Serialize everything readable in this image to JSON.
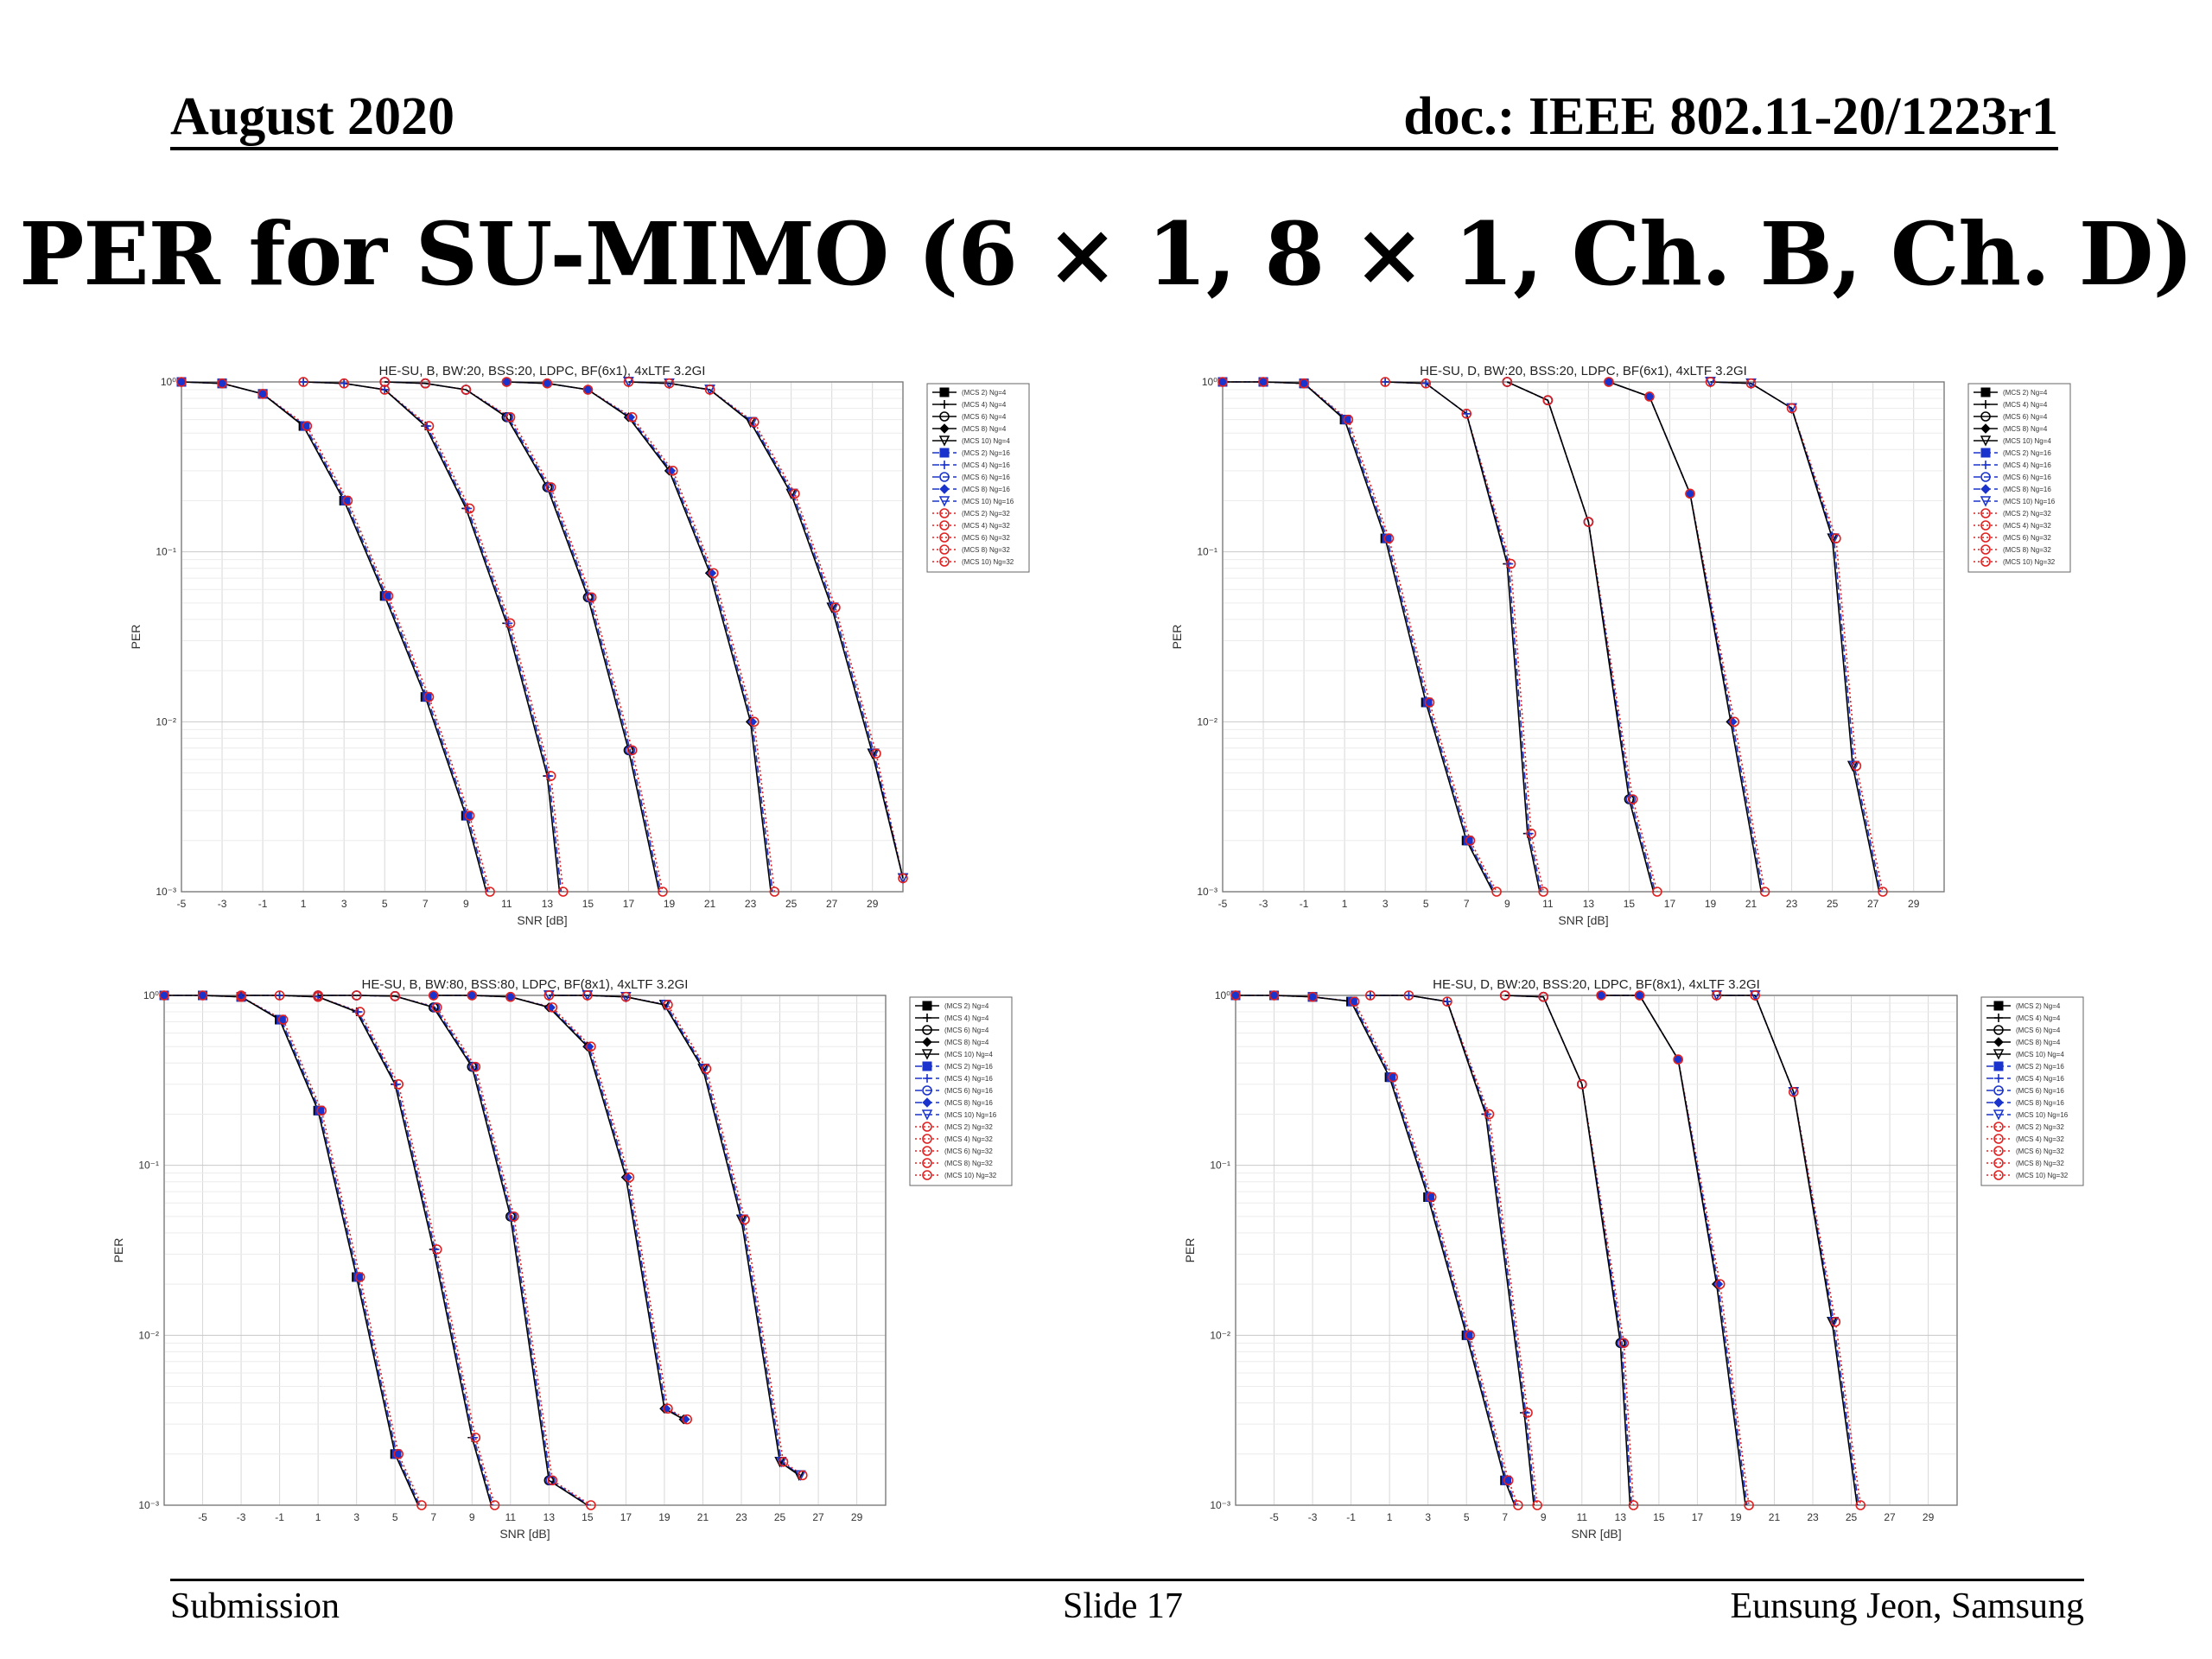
{
  "header": {
    "date": "August 2020",
    "doc": "doc.: IEEE 802.11-20/1223r1"
  },
  "title": "PER for SU-MIMO (6 × 1, 8 × 1, Ch. B, Ch. D)",
  "footer": {
    "left": "Submission",
    "center": "Slide 17",
    "right": "Eunsung Jeon, Samsung"
  },
  "colors": {
    "ng4": "#000000",
    "ng16": "#1a33cc",
    "ng32": "#e02020",
    "grid": "#d8d8d8"
  },
  "chart_data": [
    {
      "type": "line",
      "title": "HE-SU, B, BW:20, BSS:20, LDPC, BF(6x1), 4xLTF 3.2GI",
      "xlabel": "SNR [dB]",
      "ylabel": "PER",
      "log_y": true,
      "xlim": [
        -5,
        30.5
      ],
      "ylim": [
        0.001,
        1
      ],
      "xticks": [
        -5,
        -3,
        -1,
        1,
        3,
        5,
        7,
        9,
        11,
        13,
        15,
        17,
        19,
        21,
        23,
        25,
        27,
        29
      ],
      "ytick_labels": [
        "10⁰",
        "10⁻¹",
        "10⁻²",
        "10⁻³"
      ],
      "grid": true,
      "legend_position": "outside-right",
      "legend": [
        "(MCS 2) Ng=4",
        "(MCS 4) Ng=4",
        "(MCS 6) Ng=4",
        "(MCS 8) Ng=4",
        "(MCS 10) Ng=4",
        "(MCS 2) Ng=16",
        "(MCS 4) Ng=16",
        "(MCS 6) Ng=16",
        "(MCS 8) Ng=16",
        "(MCS 10) Ng=16",
        "(MCS 2) Ng=32",
        "(MCS 4) Ng=32",
        "(MCS 6) Ng=32",
        "(MCS 8) Ng=32",
        "(MCS 10) Ng=32"
      ],
      "curves": [
        {
          "mcs": 2,
          "x": [
            -5,
            -3,
            -1,
            1,
            3,
            5,
            7,
            9,
            10
          ],
          "y": [
            1,
            0.98,
            0.85,
            0.55,
            0.2,
            0.055,
            0.014,
            0.0028,
            0.001
          ]
        },
        {
          "mcs": 4,
          "x": [
            1,
            3,
            5,
            7,
            9,
            11,
            13,
            13.6
          ],
          "y": [
            1,
            0.98,
            0.9,
            0.55,
            0.18,
            0.038,
            0.0048,
            0.001
          ]
        },
        {
          "mcs": 6,
          "x": [
            5,
            7,
            9,
            11,
            13,
            15,
            17,
            18.5
          ],
          "y": [
            1,
            0.98,
            0.9,
            0.62,
            0.24,
            0.054,
            0.0068,
            0.001
          ]
        },
        {
          "mcs": 8,
          "x": [
            11,
            13,
            15,
            17,
            19,
            21,
            23,
            24
          ],
          "y": [
            1,
            0.98,
            0.9,
            0.62,
            0.3,
            0.075,
            0.01,
            0.001
          ]
        },
        {
          "mcs": 10,
          "x": [
            17,
            19,
            21,
            23,
            25,
            27,
            29,
            30.5
          ],
          "y": [
            1,
            0.98,
            0.9,
            0.58,
            0.22,
            0.047,
            0.0065,
            0.0012
          ]
        }
      ]
    },
    {
      "type": "line",
      "title": "HE-SU, D, BW:20, BSS:20, LDPC, BF(6x1), 4xLTF 3.2GI",
      "xlabel": "SNR [dB]",
      "ylabel": "PER",
      "log_y": true,
      "xlim": [
        -5,
        30.5
      ],
      "ylim": [
        0.001,
        1
      ],
      "xticks": [
        -5,
        -3,
        -1,
        1,
        3,
        5,
        7,
        9,
        11,
        13,
        15,
        17,
        19,
        21,
        23,
        25,
        27,
        29
      ],
      "ytick_labels": [
        "10⁰",
        "10⁻¹",
        "10⁻²",
        "10⁻³"
      ],
      "grid": true,
      "legend_position": "outside-right",
      "legend": [
        "(MCS 2) Ng=4",
        "(MCS 4) Ng=4",
        "(MCS 6) Ng=4",
        "(MCS 8) Ng=4",
        "(MCS 10) Ng=4",
        "(MCS 2) Ng=16",
        "(MCS 4) Ng=16",
        "(MCS 6) Ng=16",
        "(MCS 8) Ng=16",
        "(MCS 10) Ng=16",
        "(MCS 2) Ng=32",
        "(MCS 4) Ng=32",
        "(MCS 6) Ng=32",
        "(MCS 8) Ng=32",
        "(MCS 10) Ng=32"
      ],
      "curves": [
        {
          "mcs": 2,
          "x": [
            -5,
            -3,
            -1,
            1,
            3,
            5,
            7,
            8.3
          ],
          "y": [
            1,
            1,
            0.98,
            0.6,
            0.12,
            0.013,
            0.002,
            0.001
          ]
        },
        {
          "mcs": 4,
          "x": [
            3,
            5,
            7,
            9,
            10,
            10.6
          ],
          "y": [
            1,
            0.98,
            0.65,
            0.085,
            0.0022,
            0.001
          ]
        },
        {
          "mcs": 6,
          "x": [
            9,
            11,
            13,
            15,
            16.2
          ],
          "y": [
            1,
            0.78,
            0.15,
            0.0035,
            0.001
          ]
        },
        {
          "mcs": 8,
          "x": [
            14,
            16,
            18,
            20,
            21.5
          ],
          "y": [
            1,
            0.82,
            0.22,
            0.01,
            0.001
          ]
        },
        {
          "mcs": 10,
          "x": [
            19,
            21,
            23,
            25,
            26,
            27.3
          ],
          "y": [
            1,
            0.98,
            0.7,
            0.12,
            0.0055,
            0.001
          ]
        }
      ]
    },
    {
      "type": "line",
      "title": "HE-SU, B, BW:80, BSS:80, LDPC, BF(8x1), 4xLTF 3.2GI",
      "xlabel": "SNR [dB]",
      "ylabel": "PER",
      "log_y": true,
      "xlim": [
        -7,
        30.5
      ],
      "ylim": [
        0.001,
        1
      ],
      "xticks": [
        -5,
        -3,
        -1,
        1,
        3,
        5,
        7,
        9,
        11,
        13,
        15,
        17,
        19,
        21,
        23,
        25,
        27,
        29
      ],
      "ytick_labels": [
        "10⁰",
        "10⁻¹",
        "10⁻²",
        "10⁻³"
      ],
      "grid": true,
      "legend_position": "outside-right",
      "legend": [
        "(MCS 2) Ng=4",
        "(MCS 4) Ng=4",
        "(MCS 6) Ng=4",
        "(MCS 8) Ng=4",
        "(MCS 10) Ng=4",
        "(MCS 2) Ng=16",
        "(MCS 4) Ng=16",
        "(MCS 6) Ng=16",
        "(MCS 8) Ng=16",
        "(MCS 10) Ng=16",
        "(MCS 2) Ng=32",
        "(MCS 4) Ng=32",
        "(MCS 6) Ng=32",
        "(MCS 8) Ng=32",
        "(MCS 10) Ng=32"
      ],
      "curves": [
        {
          "mcs": 2,
          "x": [
            -7,
            -5,
            -3,
            -1,
            1,
            3,
            5,
            6.2
          ],
          "y": [
            1,
            1,
            0.98,
            0.72,
            0.21,
            0.022,
            0.002,
            0.001
          ]
        },
        {
          "mcs": 4,
          "x": [
            -3,
            -1,
            1,
            3,
            5,
            7,
            9,
            10
          ],
          "y": [
            1,
            1,
            0.98,
            0.8,
            0.3,
            0.032,
            0.0025,
            0.001
          ]
        },
        {
          "mcs": 6,
          "x": [
            1,
            3,
            5,
            7,
            9,
            11,
            13,
            15
          ],
          "y": [
            1,
            1,
            0.99,
            0.85,
            0.38,
            0.05,
            0.0014,
            0.001
          ]
        },
        {
          "mcs": 8,
          "x": [
            7,
            9,
            11,
            13,
            15,
            17,
            19,
            20
          ],
          "y": [
            1,
            1,
            0.98,
            0.85,
            0.5,
            0.085,
            0.0037,
            0.0032
          ]
        },
        {
          "mcs": 10,
          "x": [
            13,
            15,
            17,
            19,
            21,
            23,
            25,
            26
          ],
          "y": [
            1,
            1,
            0.98,
            0.88,
            0.37,
            0.048,
            0.0018,
            0.0015
          ]
        }
      ]
    },
    {
      "type": "line",
      "title": "HE-SU, D, BW:20, BSS:20, LDPC, BF(8x1), 4xLTF 3.2GI",
      "xlabel": "SNR [dB]",
      "ylabel": "PER",
      "log_y": true,
      "xlim": [
        -7,
        30.5
      ],
      "ylim": [
        0.001,
        1
      ],
      "xticks": [
        -5,
        -3,
        -1,
        1,
        3,
        5,
        7,
        9,
        11,
        13,
        15,
        17,
        19,
        21,
        23,
        25,
        27,
        29
      ],
      "ytick_labels": [
        "10⁰",
        "10⁻¹",
        "10⁻²",
        "10⁻³"
      ],
      "grid": true,
      "legend_position": "outside-right",
      "legend": [
        "(MCS 2) Ng=4",
        "(MCS 4) Ng=4",
        "(MCS 6) Ng=4",
        "(MCS 8) Ng=4",
        "(MCS 10) Ng=4",
        "(MCS 2) Ng=16",
        "(MCS 4) Ng=16",
        "(MCS 6) Ng=16",
        "(MCS 8) Ng=16",
        "(MCS 10) Ng=16",
        "(MCS 2) Ng=32",
        "(MCS 4) Ng=32",
        "(MCS 6) Ng=32",
        "(MCS 8) Ng=32",
        "(MCS 10) Ng=32"
      ],
      "curves": [
        {
          "mcs": 2,
          "x": [
            -7,
            -5,
            -3,
            -1,
            1,
            3,
            5,
            7,
            7.5
          ],
          "y": [
            1,
            1,
            0.98,
            0.92,
            0.33,
            0.065,
            0.01,
            0.0014,
            0.001
          ]
        },
        {
          "mcs": 4,
          "x": [
            0,
            2,
            4,
            6,
            8,
            8.5
          ],
          "y": [
            1,
            1,
            0.92,
            0.2,
            0.0035,
            0.001
          ]
        },
        {
          "mcs": 6,
          "x": [
            7,
            9,
            11,
            13,
            13.5
          ],
          "y": [
            1,
            0.98,
            0.3,
            0.009,
            0.001
          ]
        },
        {
          "mcs": 8,
          "x": [
            12,
            14,
            16,
            18,
            19.5
          ],
          "y": [
            1,
            1,
            0.42,
            0.02,
            0.001
          ]
        },
        {
          "mcs": 10,
          "x": [
            18,
            20,
            22,
            24,
            25.3
          ],
          "y": [
            1,
            1,
            0.27,
            0.012,
            0.001
          ]
        }
      ]
    }
  ]
}
